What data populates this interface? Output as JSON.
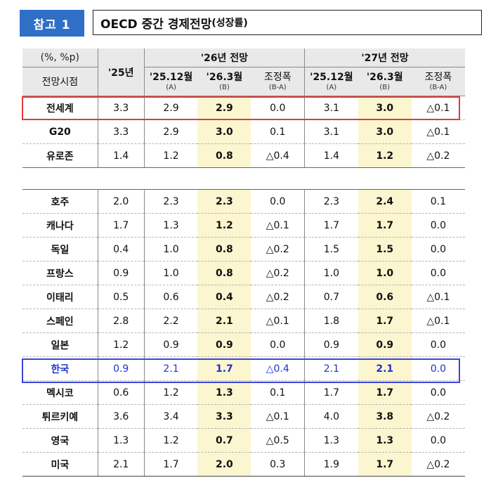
{
  "header": {
    "badge": "참고 1",
    "title": "OECD 중간 경제전망",
    "title_sub": "(성장률)"
  },
  "table": {
    "unit": "(%, %p)",
    "row_header": "전망시점",
    "col_25": "'25년",
    "group_26": "'26년 전망",
    "group_27": "'27년 전망",
    "sub_cols": [
      {
        "main": "'25.12월",
        "sub": "(A)"
      },
      {
        "main": "'26.3월",
        "sub": "(B)"
      },
      {
        "main": "조정폭",
        "sub": "(B-A)"
      },
      {
        "main": "'25.12월",
        "sub": "(A)"
      },
      {
        "main": "'26.3월",
        "sub": "(B)"
      },
      {
        "main": "조정폭",
        "sub": "(B-A)"
      }
    ],
    "block1": [
      {
        "name": "전세계",
        "v": [
          "3.3",
          "2.9",
          "2.9",
          "0.0",
          "3.1",
          "3.0",
          "△0.1"
        ]
      },
      {
        "name": "G20",
        "v": [
          "3.3",
          "2.9",
          "3.0",
          "0.1",
          "3.1",
          "3.0",
          "△0.1"
        ]
      },
      {
        "name": "유로존",
        "v": [
          "1.4",
          "1.2",
          "0.8",
          "△0.4",
          "1.4",
          "1.2",
          "△0.2"
        ]
      }
    ],
    "block2": [
      {
        "name": "호주",
        "v": [
          "2.0",
          "2.3",
          "2.3",
          "0.0",
          "2.3",
          "2.4",
          "0.1"
        ]
      },
      {
        "name": "캐나다",
        "v": [
          "1.7",
          "1.3",
          "1.2",
          "△0.1",
          "1.7",
          "1.7",
          "0.0"
        ]
      },
      {
        "name": "독일",
        "v": [
          "0.4",
          "1.0",
          "0.8",
          "△0.2",
          "1.5",
          "1.5",
          "0.0"
        ]
      },
      {
        "name": "프랑스",
        "v": [
          "0.9",
          "1.0",
          "0.8",
          "△0.2",
          "1.0",
          "1.0",
          "0.0"
        ]
      },
      {
        "name": "이태리",
        "v": [
          "0.5",
          "0.6",
          "0.4",
          "△0.2",
          "0.7",
          "0.6",
          "△0.1"
        ]
      },
      {
        "name": "스페인",
        "v": [
          "2.8",
          "2.2",
          "2.1",
          "△0.1",
          "1.8",
          "1.7",
          "△0.1"
        ]
      },
      {
        "name": "일본",
        "v": [
          "1.2",
          "0.9",
          "0.9",
          "0.0",
          "0.9",
          "0.9",
          "0.0"
        ]
      },
      {
        "name": "한국",
        "v": [
          "0.9",
          "2.1",
          "1.7",
          "△0.4",
          "2.1",
          "2.1",
          "0.0"
        ]
      },
      {
        "name": "멕시코",
        "v": [
          "0.6",
          "1.2",
          "1.3",
          "0.1",
          "1.7",
          "1.7",
          "0.0"
        ]
      },
      {
        "name": "튀르키예",
        "v": [
          "3.6",
          "3.4",
          "3.3",
          "△0.1",
          "4.0",
          "3.8",
          "△0.2"
        ]
      },
      {
        "name": "영국",
        "v": [
          "1.3",
          "1.2",
          "0.7",
          "△0.5",
          "1.3",
          "1.3",
          "0.0"
        ]
      },
      {
        "name": "미국",
        "v": [
          "2.1",
          "1.7",
          "2.0",
          "0.3",
          "1.9",
          "1.7",
          "△0.2"
        ]
      }
    ]
  },
  "colors": {
    "badge": "#2f6fc6",
    "header_bg": "#e9e9e9",
    "highlight_col": "#fbf6d0",
    "world_box": "#e03a3a",
    "korea_box": "#3b45d8",
    "korea_text": "#2233cc"
  }
}
